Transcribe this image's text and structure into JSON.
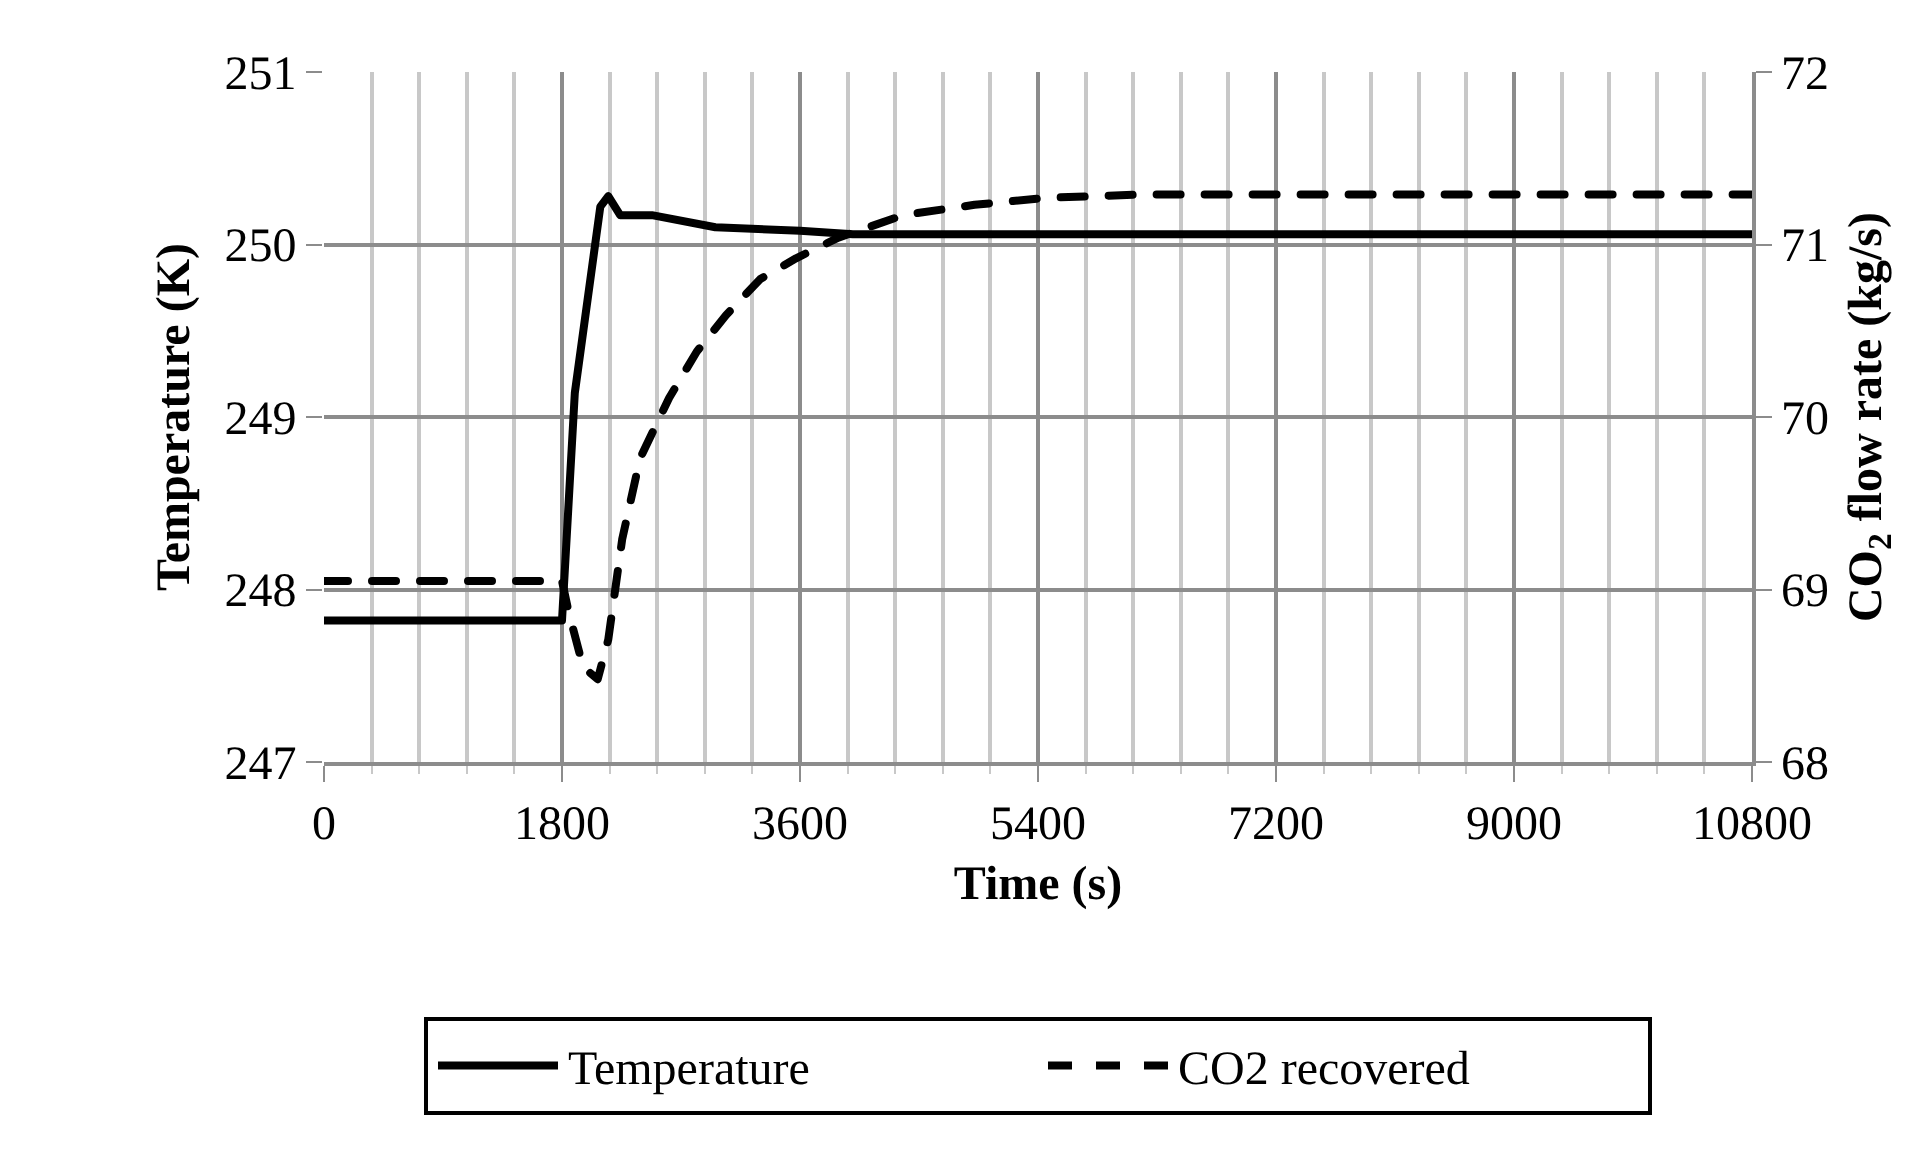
{
  "chart_data": {
    "type": "line",
    "xlabel": "Time (s)",
    "ylabel": "Temperature (K)",
    "y2label": "CO$_{2}$ flow rate (kg/s)",
    "xlim": [
      0,
      10800
    ],
    "xticks": [
      0,
      {
        "value": 360,
        "label": null
      },
      {
        "value": 720,
        "label": null
      },
      {
        "value": 1080,
        "label": null
      },
      {
        "value": 1440,
        "label": null
      },
      1800,
      {
        "value": 2160,
        "label": null
      },
      {
        "value": 2520,
        "label": null
      },
      {
        "value": 2880,
        "label": null
      },
      {
        "value": 3240,
        "label": null
      },
      3600,
      {
        "value": 3960,
        "label": null
      },
      {
        "value": 4320,
        "label": null
      },
      {
        "value": 4680,
        "label": null
      },
      {
        "value": 5040,
        "label": null
      },
      5400,
      {
        "value": 5760,
        "label": null
      },
      {
        "value": 6120,
        "label": null
      },
      {
        "value": 6480,
        "label": null
      },
      {
        "value": 6840,
        "label": null
      },
      7200,
      {
        "value": 7560,
        "label": null
      },
      {
        "value": 7920,
        "label": null
      },
      {
        "value": 8280,
        "label": null
      },
      {
        "value": 8640,
        "label": null
      },
      9000,
      {
        "value": 9360,
        "label": null
      },
      {
        "value": 9720,
        "label": null
      },
      {
        "value": 10080,
        "label": null
      },
      {
        "value": 10440,
        "label": null
      },
      10800
    ],
    "ylim": [
      247,
      251
    ],
    "yticks": [
      247,
      248,
      249,
      250,
      251
    ],
    "y2lim": [
      68,
      72
    ],
    "y2ticks": [
      68,
      69,
      70,
      71,
      72
    ],
    "grid": true,
    "legend": "bottom",
    "marker": "none",
    "series": [
      {
        "name": "Temperature",
        "color": "#000000",
        "line_style": "solid",
        "x": [
          0,
          1800,
          1897,
          2090,
          2150,
          2240,
          2480,
          2960,
          3600,
          4000,
          10800
        ],
        "values": [
          247.82,
          247.82,
          249.14,
          250.22,
          250.28,
          250.17,
          250.17,
          250.1,
          250.08,
          250.06,
          250.06
        ]
      },
      {
        "name": "CO2 recovered",
        "color": "#000000",
        "line_style": "dashed",
        "axis": "y2",
        "x": [
          0,
          1800,
          1850,
          1960,
          2070,
          2150,
          2255,
          2390,
          2610,
          2820,
          3040,
          3300,
          3570,
          3890,
          4380,
          4920,
          5450,
          6200,
          10800
        ],
        "values": [
          69.05,
          69.05,
          68.87,
          68.55,
          68.48,
          68.71,
          69.29,
          69.76,
          70.11,
          70.38,
          70.59,
          70.8,
          70.92,
          71.04,
          71.17,
          71.23,
          71.27,
          71.29,
          71.29
        ]
      }
    ]
  }
}
